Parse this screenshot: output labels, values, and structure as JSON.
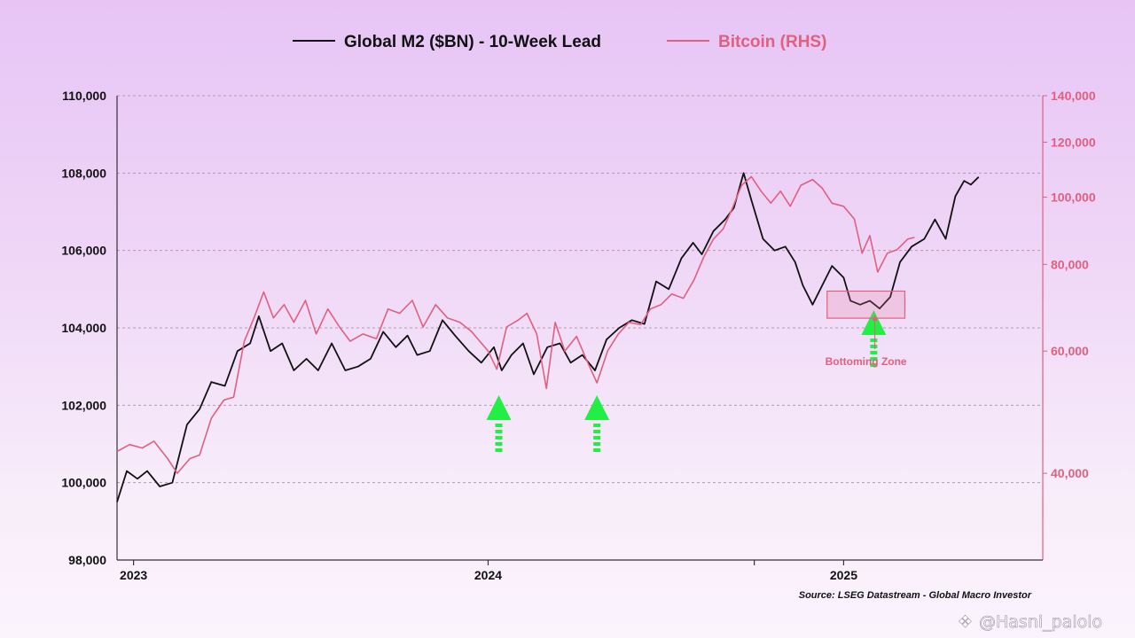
{
  "chart_data": {
    "type": "line",
    "source": "Source: LSEG Datastream - Global Macro Investor",
    "x_ticks": [
      "2023",
      "2024",
      "2025"
    ],
    "y_left": {
      "ticks": [
        "98,000",
        "100,000",
        "102,000",
        "104,000",
        "106,000",
        "108,000",
        "110,000"
      ],
      "ylim": [
        98000,
        110000
      ]
    },
    "y_right": {
      "scale": "log",
      "ticks": [
        "40,000",
        "60,000",
        "80,000",
        "100,000",
        "120,000",
        "140,000"
      ],
      "ylim": [
        30000,
        140000
      ]
    },
    "grid": "horizontal dashed",
    "legend_position": "top-center",
    "colors": {
      "m2": "#111111",
      "btc": "#e0607e",
      "arrow": "#22ee44"
    },
    "series": [
      {
        "name": "Global M2 ($BN) - 10-Week Lead",
        "axis": "left",
        "points": [
          [
            "2022-12-15",
            99500
          ],
          [
            "2022-12-25",
            100300
          ],
          [
            "2023-01-05",
            100100
          ],
          [
            "2023-01-15",
            100300
          ],
          [
            "2023-01-28",
            99900
          ],
          [
            "2023-02-10",
            100000
          ],
          [
            "2023-02-25",
            101500
          ],
          [
            "2023-03-10",
            101900
          ],
          [
            "2023-03-22",
            102600
          ],
          [
            "2023-04-05",
            102500
          ],
          [
            "2023-04-18",
            103400
          ],
          [
            "2023-05-01",
            103600
          ],
          [
            "2023-05-10",
            104300
          ],
          [
            "2023-05-22",
            103400
          ],
          [
            "2023-06-03",
            103600
          ],
          [
            "2023-06-15",
            102900
          ],
          [
            "2023-06-28",
            103200
          ],
          [
            "2023-07-10",
            102900
          ],
          [
            "2023-07-24",
            103600
          ],
          [
            "2023-08-07",
            102900
          ],
          [
            "2023-08-20",
            103000
          ],
          [
            "2023-09-02",
            103200
          ],
          [
            "2023-09-15",
            103900
          ],
          [
            "2023-09-28",
            103500
          ],
          [
            "2023-10-10",
            103800
          ],
          [
            "2023-10-20",
            103300
          ],
          [
            "2023-11-02",
            103400
          ],
          [
            "2023-11-15",
            104200
          ],
          [
            "2023-11-28",
            103800
          ],
          [
            "2023-12-12",
            103400
          ],
          [
            "2023-12-25",
            103100
          ],
          [
            "2024-01-07",
            103500
          ],
          [
            "2024-01-15",
            102900
          ],
          [
            "2024-01-25",
            103300
          ],
          [
            "2024-02-06",
            103600
          ],
          [
            "2024-02-17",
            102800
          ],
          [
            "2024-03-02",
            103500
          ],
          [
            "2024-03-15",
            103600
          ],
          [
            "2024-03-26",
            103100
          ],
          [
            "2024-04-07",
            103300
          ],
          [
            "2024-04-20",
            102900
          ],
          [
            "2024-05-02",
            103700
          ],
          [
            "2024-05-15",
            104000
          ],
          [
            "2024-05-28",
            104200
          ],
          [
            "2024-06-10",
            104100
          ],
          [
            "2024-06-22",
            105200
          ],
          [
            "2024-07-05",
            105000
          ],
          [
            "2024-07-18",
            105800
          ],
          [
            "2024-07-30",
            106200
          ],
          [
            "2024-08-08",
            105900
          ],
          [
            "2024-08-20",
            106500
          ],
          [
            "2024-09-01",
            106800
          ],
          [
            "2024-09-10",
            107100
          ],
          [
            "2024-09-20",
            108000
          ],
          [
            "2024-09-28",
            107300
          ],
          [
            "2024-10-10",
            106300
          ],
          [
            "2024-10-22",
            106000
          ],
          [
            "2024-11-02",
            106100
          ],
          [
            "2024-11-12",
            105700
          ],
          [
            "2024-11-20",
            105100
          ],
          [
            "2024-11-30",
            104600
          ],
          [
            "2024-12-10",
            105100
          ],
          [
            "2024-12-20",
            105600
          ],
          [
            "2025-01-01",
            105300
          ],
          [
            "2025-01-08",
            104700
          ],
          [
            "2025-01-18",
            104600
          ],
          [
            "2025-01-28",
            104700
          ],
          [
            "2025-02-07",
            104500
          ],
          [
            "2025-02-18",
            104800
          ],
          [
            "2025-02-28",
            105700
          ],
          [
            "2025-03-12",
            106100
          ],
          [
            "2025-03-25",
            106300
          ],
          [
            "2025-04-05",
            106800
          ],
          [
            "2025-04-16",
            106300
          ],
          [
            "2025-04-26",
            107400
          ],
          [
            "2025-05-05",
            107800
          ],
          [
            "2025-05-12",
            107700
          ],
          [
            "2025-05-20",
            107900
          ]
        ]
      },
      {
        "name": "Bitcoin (RHS)",
        "axis": "right",
        "points": [
          [
            "2022-12-15",
            43000
          ],
          [
            "2022-12-28",
            44000
          ],
          [
            "2023-01-10",
            43500
          ],
          [
            "2023-01-22",
            44500
          ],
          [
            "2023-02-05",
            42000
          ],
          [
            "2023-02-15",
            40000
          ],
          [
            "2023-02-28",
            42000
          ],
          [
            "2023-03-10",
            42500
          ],
          [
            "2023-03-22",
            48000
          ],
          [
            "2023-04-04",
            51000
          ],
          [
            "2023-04-14",
            51500
          ],
          [
            "2023-04-25",
            62000
          ],
          [
            "2023-05-05",
            67000
          ],
          [
            "2023-05-15",
            73000
          ],
          [
            "2023-05-25",
            67000
          ],
          [
            "2023-06-05",
            70000
          ],
          [
            "2023-06-15",
            66000
          ],
          [
            "2023-06-27",
            71000
          ],
          [
            "2023-07-08",
            63500
          ],
          [
            "2023-07-20",
            69000
          ],
          [
            "2023-08-01",
            65000
          ],
          [
            "2023-08-12",
            62000
          ],
          [
            "2023-08-25",
            63500
          ],
          [
            "2023-09-08",
            62500
          ],
          [
            "2023-09-20",
            69000
          ],
          [
            "2023-10-02",
            68000
          ],
          [
            "2023-10-15",
            71000
          ],
          [
            "2023-10-26",
            65000
          ],
          [
            "2023-11-08",
            70000
          ],
          [
            "2023-11-20",
            67000
          ],
          [
            "2023-12-03",
            66000
          ],
          [
            "2023-12-15",
            64000
          ],
          [
            "2024-01-01",
            60000
          ],
          [
            "2024-01-10",
            56500
          ],
          [
            "2024-01-20",
            65000
          ],
          [
            "2024-02-01",
            66500
          ],
          [
            "2024-02-10",
            68000
          ],
          [
            "2024-02-20",
            63500
          ],
          [
            "2024-03-01",
            53000
          ],
          [
            "2024-03-10",
            66000
          ],
          [
            "2024-03-20",
            60000
          ],
          [
            "2024-04-01",
            63000
          ],
          [
            "2024-04-12",
            58000
          ],
          [
            "2024-04-22",
            54000
          ],
          [
            "2024-05-03",
            60000
          ],
          [
            "2024-05-14",
            63500
          ],
          [
            "2024-05-25",
            66000
          ],
          [
            "2024-06-06",
            65500
          ],
          [
            "2024-06-16",
            69000
          ],
          [
            "2024-06-27",
            70000
          ],
          [
            "2024-07-08",
            72500
          ],
          [
            "2024-07-20",
            71500
          ],
          [
            "2024-07-31",
            76000
          ],
          [
            "2024-08-10",
            82000
          ],
          [
            "2024-08-20",
            87000
          ],
          [
            "2024-08-30",
            90000
          ],
          [
            "2024-09-08",
            96000
          ],
          [
            "2024-09-18",
            104000
          ],
          [
            "2024-09-28",
            107000
          ],
          [
            "2024-10-08",
            102000
          ],
          [
            "2024-10-18",
            98000
          ],
          [
            "2024-10-28",
            102000
          ],
          [
            "2024-11-07",
            97000
          ],
          [
            "2024-11-18",
            104000
          ],
          [
            "2024-11-30",
            106000
          ],
          [
            "2024-12-10",
            103000
          ],
          [
            "2024-12-20",
            98000
          ],
          [
            "2025-01-01",
            97000
          ],
          [
            "2025-01-12",
            93000
          ],
          [
            "2025-01-20",
            83000
          ],
          [
            "2025-01-28",
            88000
          ],
          [
            "2025-02-05",
            78000
          ],
          [
            "2025-02-15",
            83000
          ],
          [
            "2025-02-25",
            84000
          ],
          [
            "2025-03-08",
            87000
          ],
          [
            "2025-03-15",
            87500
          ]
        ]
      }
    ],
    "annotations": [
      {
        "type": "arrow",
        "date": "2024-01-12",
        "note": ""
      },
      {
        "type": "arrow",
        "date": "2024-04-22",
        "note": ""
      },
      {
        "type": "arrow",
        "date": "2025-02-01",
        "note": ""
      },
      {
        "type": "box",
        "from": "2024-12-15",
        "to": "2025-03-05",
        "y_range": [
          104250,
          104950
        ],
        "label": "Bottoming Zone"
      }
    ]
  },
  "watermark": "@Hasni_palolo"
}
